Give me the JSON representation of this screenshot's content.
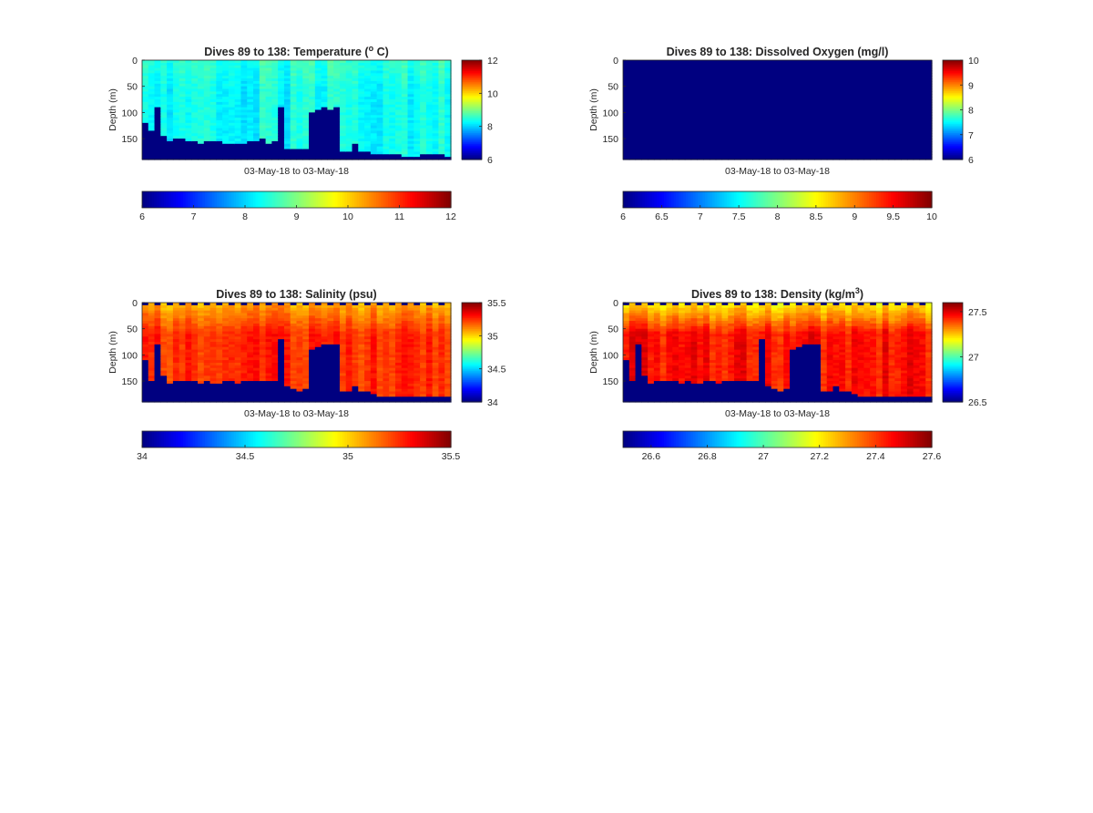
{
  "colors": {
    "jet_low": "#00008f",
    "jet_high": "#800000",
    "axis": "#262626",
    "page": "#ffffff"
  },
  "chart_data": [
    {
      "type": "heatmap",
      "title": "Dives 89 to 138: Temperature (",
      "title_sup": "o",
      "title_end": " C)",
      "xlabel": "03-May-18 to 03-May-18",
      "ylabel": "Depth (m)",
      "ylim": [
        0,
        190
      ],
      "y_ticks": [
        "0",
        "50",
        "100",
        "150"
      ],
      "colorbar": {
        "min": 6,
        "max": 12,
        "ticks": [
          "6",
          "8",
          "10",
          "12"
        ]
      },
      "colorbar_h": {
        "ticks": [
          "6",
          "7",
          "8",
          "9",
          "10",
          "11",
          "12"
        ]
      },
      "field": {
        "surface": 8.5,
        "deep": 8.3,
        "noise": 0.25,
        "blank_top": false
      },
      "bottom_depth_per_dive": [
        120,
        135,
        90,
        145,
        155,
        152,
        150,
        155,
        153,
        158,
        155,
        157,
        156,
        158,
        159,
        160,
        158,
        157,
        155,
        152,
        158,
        157,
        88,
        168,
        170,
        170,
        170,
        100,
        95,
        92,
        95,
        92,
        175,
        173,
        158,
        175,
        176,
        178,
        180,
        180,
        182,
        182,
        184,
        183,
        183,
        180,
        180,
        180,
        180,
        183
      ]
    },
    {
      "type": "heatmap",
      "title": "Dives 89 to 138: Dissolved Oxygen (mg/l)",
      "xlabel": "03-May-18 to 03-May-18",
      "ylabel": "Depth (m)",
      "ylim": [
        0,
        190
      ],
      "y_ticks": [
        "0",
        "50",
        "100",
        "150"
      ],
      "colorbar": {
        "min": 6,
        "max": 10,
        "ticks": [
          "6",
          "7",
          "8",
          "9",
          "10"
        ]
      },
      "colorbar_h": {
        "ticks": [
          "6",
          "6.5",
          "7",
          "7.5",
          "8",
          "8.5",
          "9",
          "9.5",
          "10"
        ]
      },
      "field": {
        "uniform_value": 6
      },
      "bottom_depth_per_dive": []
    },
    {
      "type": "heatmap",
      "title": "Dives 89 to 138: Salinity (psu)",
      "xlabel": "03-May-18 to 03-May-18",
      "ylabel": "Depth (m)",
      "ylim": [
        0,
        190
      ],
      "y_ticks": [
        "0",
        "50",
        "100",
        "150"
      ],
      "colorbar": {
        "min": 34,
        "max": 35.5,
        "ticks": [
          "34",
          "34.5",
          "35",
          "35.5"
        ]
      },
      "colorbar_h": {
        "ticks": [
          "34",
          "34.5",
          "35",
          "35.5"
        ]
      },
      "field": {
        "surface": 35.05,
        "deep": 35.25,
        "noise": 0.06,
        "blank_top": true
      },
      "bottom_depth_per_dive": [
        110,
        150,
        80,
        140,
        155,
        150,
        150,
        152,
        150,
        155,
        152,
        155,
        155,
        150,
        152,
        155,
        150,
        152,
        150,
        148,
        150,
        150,
        70,
        160,
        165,
        168,
        165,
        90,
        85,
        80,
        80,
        78,
        170,
        168,
        160,
        170,
        172,
        175,
        178,
        180,
        182,
        180,
        182,
        180,
        182,
        178,
        180,
        178,
        180,
        182
      ]
    },
    {
      "type": "heatmap",
      "title": "Dives 89 to 138: Density (kg/m",
      "title_sup": "3",
      "title_end": ")",
      "xlabel": "03-May-18 to 03-May-18",
      "ylabel": "Depth (m)",
      "ylim": [
        0,
        190
      ],
      "y_ticks": [
        "0",
        "50",
        "100",
        "150"
      ],
      "colorbar": {
        "min": 26.5,
        "max": 27.6,
        "ticks": [
          "26.5",
          "27",
          "27.5"
        ]
      },
      "colorbar_h": {
        "ticks": [
          "26.6",
          "26.8",
          "27",
          "27.2",
          "27.4",
          "27.6"
        ]
      },
      "field": {
        "surface": 27.2,
        "deep": 27.45,
        "noise": 0.05,
        "blank_top": true
      },
      "bottom_depth_per_dive": [
        110,
        150,
        80,
        140,
        155,
        150,
        150,
        152,
        150,
        155,
        152,
        155,
        155,
        150,
        152,
        155,
        150,
        152,
        150,
        148,
        150,
        150,
        70,
        160,
        165,
        168,
        165,
        90,
        85,
        80,
        80,
        78,
        170,
        168,
        160,
        170,
        172,
        175,
        178,
        180,
        182,
        180,
        182,
        180,
        182,
        178,
        180,
        178,
        180,
        182
      ]
    }
  ]
}
